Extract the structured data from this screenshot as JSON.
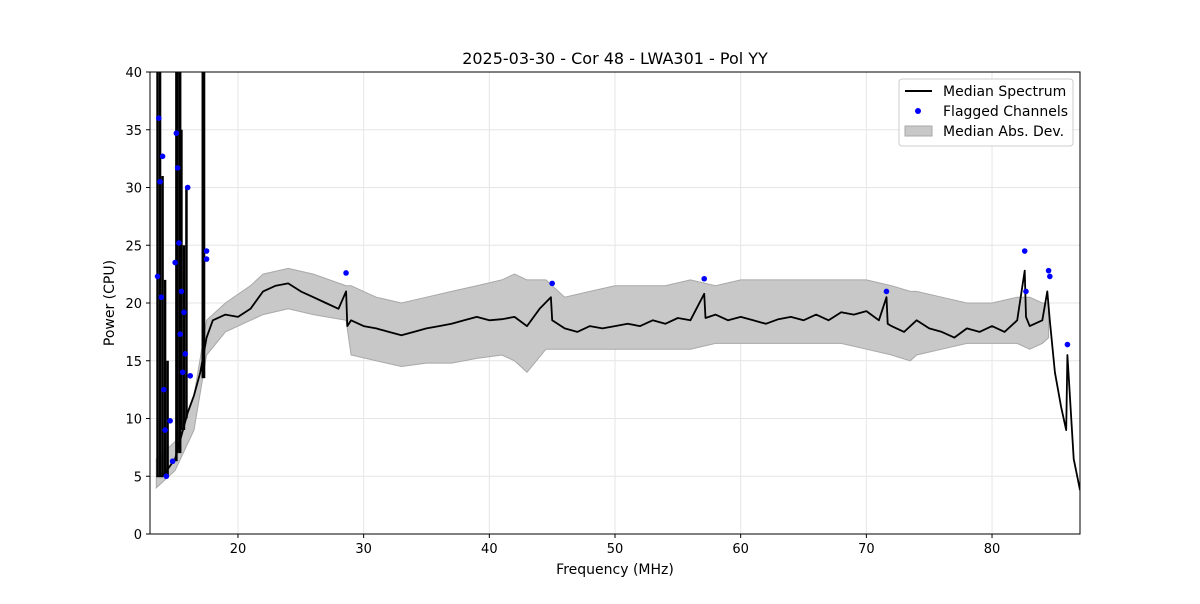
{
  "chart_data": {
    "type": "line",
    "title": "2025-03-30 - Cor 48 - LWA301 - Pol YY",
    "xlabel": "Frequency (MHz)",
    "ylabel": "Power (CPU)",
    "xlim": [
      13,
      87
    ],
    "ylim": [
      0,
      40
    ],
    "xticks": [
      20,
      30,
      40,
      50,
      60,
      70,
      80
    ],
    "yticks": [
      0,
      5,
      10,
      15,
      20,
      25,
      30,
      35,
      40
    ],
    "grid": true,
    "legend_position": "top-right",
    "legend": [
      "Median Spectrum",
      "Flagged Channels",
      "Median Abs. Dev."
    ],
    "colors": {
      "median": "#000000",
      "flagged": "#0000ff",
      "band_fill": "#c8c8c8",
      "band_edge": "#a8a8a8",
      "grid": "#e6e6e6"
    },
    "series": [
      {
        "name": "Median Spectrum",
        "type": "line",
        "x": [
          13.5,
          14.0,
          15.0,
          16.0,
          16.5,
          17.0,
          17.5,
          18.0,
          19.0,
          20.0,
          21.0,
          22.0,
          23.0,
          24.0,
          25.0,
          26.0,
          27.0,
          28.0,
          28.6,
          28.7,
          29.0,
          30.0,
          31.0,
          32.0,
          33.0,
          34.0,
          35.0,
          36.0,
          37.0,
          38.0,
          39.0,
          40.0,
          41.0,
          42.0,
          43.0,
          44.0,
          44.9,
          45.0,
          46.0,
          47.0,
          48.0,
          49.0,
          50.0,
          51.0,
          52.0,
          53.0,
          54.0,
          55.0,
          56.0,
          57.1,
          57.2,
          58.0,
          59.0,
          60.0,
          61.0,
          62.0,
          63.0,
          64.0,
          65.0,
          66.0,
          67.0,
          68.0,
          69.0,
          70.0,
          71.0,
          71.6,
          71.7,
          72.0,
          73.0,
          74.0,
          75.0,
          76.0,
          77.0,
          78.0,
          79.0,
          80.0,
          81.0,
          82.0,
          82.6,
          82.7,
          83.0,
          84.0,
          84.4,
          84.6,
          85.0,
          85.5,
          85.9,
          86.0,
          86.5,
          87.0
        ],
        "y": [
          5.0,
          5.0,
          6.5,
          10.5,
          12.0,
          14.0,
          17.0,
          18.5,
          19.0,
          18.8,
          19.5,
          21.0,
          21.5,
          21.7,
          21.0,
          20.5,
          20.0,
          19.5,
          21.0,
          18.0,
          18.5,
          18.0,
          17.8,
          17.5,
          17.2,
          17.5,
          17.8,
          18.0,
          18.2,
          18.5,
          18.8,
          18.5,
          18.6,
          18.8,
          18.0,
          19.5,
          20.5,
          18.5,
          17.8,
          17.5,
          18.0,
          17.8,
          18.0,
          18.2,
          18.0,
          18.5,
          18.2,
          18.7,
          18.5,
          20.8,
          18.7,
          19.0,
          18.5,
          18.8,
          18.5,
          18.2,
          18.6,
          18.8,
          18.5,
          19.0,
          18.5,
          19.2,
          19.0,
          19.3,
          18.5,
          20.5,
          18.2,
          18.0,
          17.5,
          18.5,
          17.8,
          17.5,
          17.0,
          17.8,
          17.5,
          18.0,
          17.5,
          18.5,
          22.8,
          18.8,
          18.0,
          18.5,
          21.0,
          18.5,
          14.0,
          11.0,
          9.0,
          15.5,
          6.5,
          3.8
        ]
      },
      {
        "name": "Median Abs. Dev.",
        "type": "band",
        "x": [
          13.5,
          15.0,
          16.5,
          17.5,
          19.0,
          21.0,
          22.0,
          24.0,
          26.0,
          28.6,
          29.0,
          31.0,
          33.0,
          35.0,
          37.0,
          39.0,
          41.0,
          42.0,
          43.0,
          44.5,
          46.0,
          48.0,
          50.0,
          52.0,
          54.0,
          56.0,
          58.0,
          60.0,
          62.0,
          64.0,
          66.0,
          68.0,
          70.0,
          72.0,
          73.5,
          74.0,
          76.0,
          78.0,
          80.0,
          82.0,
          83.0,
          84.0,
          84.5
        ],
        "low": [
          4.0,
          5.5,
          9.0,
          15.5,
          17.5,
          18.5,
          19.0,
          19.5,
          19.0,
          18.5,
          15.5,
          15.0,
          14.5,
          14.8,
          14.8,
          15.2,
          15.5,
          15.0,
          14.0,
          16.0,
          16.0,
          16.0,
          16.0,
          16.0,
          16.0,
          16.0,
          16.5,
          16.5,
          16.5,
          16.5,
          16.5,
          16.5,
          16.0,
          15.5,
          15.0,
          15.5,
          16.0,
          16.5,
          16.5,
          16.5,
          16.0,
          16.5,
          17.0
        ],
        "high": [
          6.5,
          8.0,
          12.0,
          18.5,
          20.0,
          21.5,
          22.5,
          23.0,
          22.5,
          21.5,
          21.5,
          20.5,
          20.0,
          20.5,
          21.0,
          21.5,
          22.0,
          22.5,
          22.0,
          22.0,
          20.5,
          21.0,
          21.5,
          21.5,
          21.5,
          22.0,
          21.5,
          22.0,
          22.0,
          22.0,
          22.0,
          22.0,
          22.0,
          21.5,
          21.0,
          21.0,
          20.5,
          20.0,
          20.0,
          20.5,
          20.5,
          20.0,
          20.0
        ]
      },
      {
        "name": "Flagged Channels",
        "type": "scatter",
        "x": [
          13.6,
          13.7,
          13.8,
          13.9,
          14.0,
          14.1,
          14.2,
          14.3,
          14.6,
          14.8,
          15.0,
          15.1,
          15.2,
          15.3,
          15.4,
          15.5,
          15.6,
          15.7,
          15.8,
          16.0,
          16.2,
          17.5,
          17.5,
          28.6,
          45.0,
          57.1,
          71.6,
          82.6,
          82.7,
          84.5,
          84.6,
          86.0
        ],
        "y": [
          22.3,
          36.0,
          30.5,
          20.5,
          32.7,
          12.5,
          9.0,
          5.0,
          9.8,
          6.3,
          23.5,
          34.7,
          31.7,
          25.2,
          17.3,
          21.0,
          14.0,
          19.2,
          15.6,
          30.0,
          13.7,
          24.5,
          23.8,
          22.6,
          21.7,
          22.1,
          21.0,
          24.5,
          21.0,
          22.8,
          22.3,
          16.4
        ]
      },
      {
        "name": "",
        "type": "rfi_spikes",
        "x": [
          13.6,
          13.8,
          14.0,
          14.2,
          14.4,
          15.1,
          15.2,
          15.4,
          15.5,
          15.7,
          15.9,
          17.2,
          17.3
        ],
        "low": [
          5.0,
          5.0,
          5.0,
          5.0,
          5.0,
          6.3,
          7.0,
          7.0,
          9.0,
          9.0,
          10.0,
          13.5,
          13.5
        ],
        "high": [
          40.0,
          40.0,
          31.0,
          22.0,
          15.0,
          40.0,
          40.0,
          40.0,
          35.0,
          25.0,
          30.0,
          40.0,
          40.0
        ]
      }
    ]
  }
}
